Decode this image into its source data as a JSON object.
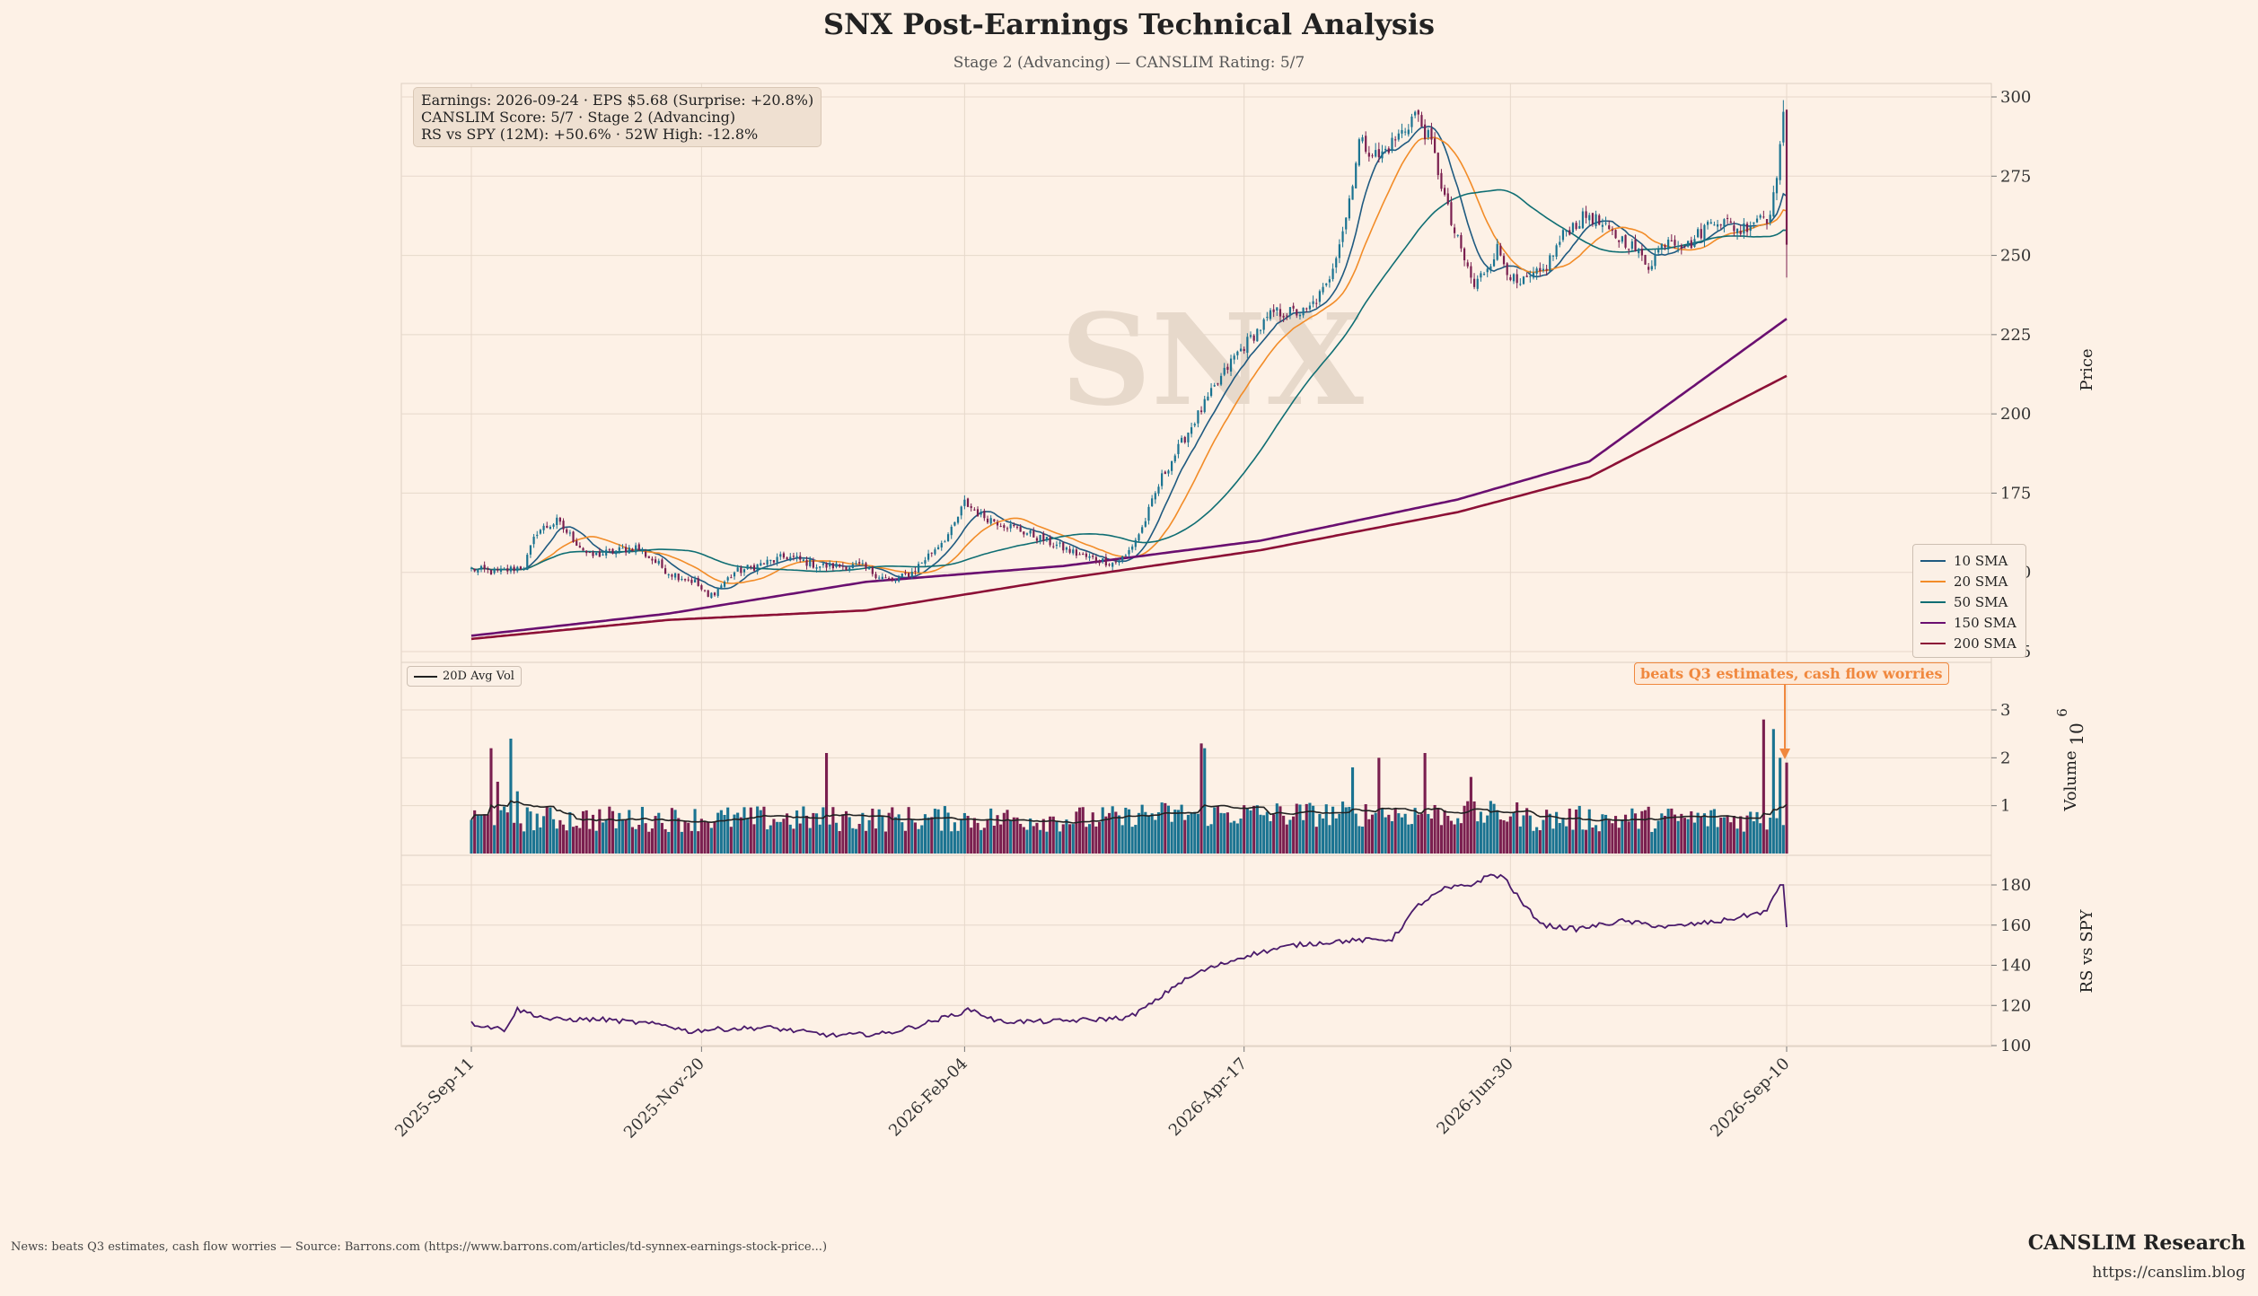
{
  "title": "SNX Post-Earnings Technical Analysis",
  "subtitle": "Stage 2 (Advancing) — CANSLIM Rating: 5/7",
  "watermark": "SNX",
  "info_box": [
    "Earnings: 2026-09-24 · EPS $5.68 (Surprise: +20.8%)",
    "CANSLIM Score: 5/7 · Stage 2 (Advancing)",
    "RS vs SPY (12M): +50.6% · 52W High: -12.8%"
  ],
  "annotation": "beats Q3 estimates, cash flow worries",
  "footer": {
    "news": "News: beats Q3 estimates, cash flow worries — Source: Barrons.com (https://www.barrons.com/articles/td-synnex-earnings-stock-price...)",
    "brand": "CANSLIM Research",
    "url": "https://canslim.blog"
  },
  "colors": {
    "up": "#1a7391",
    "down": "#7a1f4f",
    "sma10": "#1f5a80",
    "sma20": "#f28c28",
    "sma50": "#0f6e73",
    "sma150": "#6a0f70",
    "sma200": "#8c1036",
    "rs": "#4a1a6b",
    "annotation": "#f0883e"
  },
  "chart_data": {
    "type": "candlestick",
    "x_ticks": [
      "2025-Sep-11",
      "2025-Nov-20",
      "2026-Feb-04",
      "2026-Apr-17",
      "2026-Jun-30",
      "2026-Sep-10"
    ],
    "price_panel": {
      "ylabel": "Price",
      "ylim": [
        122,
        307
      ],
      "yticks": [
        125,
        150,
        175,
        200,
        225,
        250,
        275,
        300
      ],
      "legend_position": "right",
      "anchors": [
        [
          0,
          151
        ],
        [
          8,
          150
        ],
        [
          16,
          152
        ],
        [
          20,
          163
        ],
        [
          26,
          166
        ],
        [
          36,
          155
        ],
        [
          50,
          158
        ],
        [
          60,
          150
        ],
        [
          68,
          147
        ],
        [
          72,
          142
        ],
        [
          80,
          150
        ],
        [
          96,
          155
        ],
        [
          106,
          152
        ],
        [
          118,
          152
        ],
        [
          128,
          147
        ],
        [
          134,
          150
        ],
        [
          146,
          163
        ],
        [
          150,
          172
        ],
        [
          155,
          168
        ],
        [
          170,
          162
        ],
        [
          186,
          155
        ],
        [
          195,
          153
        ],
        [
          199,
          155
        ],
        [
          204,
          164
        ],
        [
          210,
          180
        ],
        [
          220,
          198
        ],
        [
          232,
          218
        ],
        [
          244,
          232
        ],
        [
          254,
          232
        ],
        [
          260,
          240
        ],
        [
          266,
          262
        ],
        [
          270,
          286
        ],
        [
          276,
          281
        ],
        [
          284,
          290
        ],
        [
          287,
          295
        ],
        [
          292,
          285
        ],
        [
          298,
          260
        ],
        [
          305,
          240
        ],
        [
          312,
          252
        ],
        [
          318,
          240
        ],
        [
          326,
          245
        ],
        [
          333,
          258
        ],
        [
          340,
          263
        ],
        [
          346,
          257
        ],
        [
          352,
          254
        ],
        [
          358,
          247
        ],
        [
          364,
          256
        ],
        [
          370,
          253
        ],
        [
          378,
          262
        ],
        [
          386,
          258
        ],
        [
          392,
          263
        ],
        [
          394,
          262
        ],
        [
          396,
          268
        ],
        [
          398,
          285
        ],
        [
          399,
          293
        ],
        [
          400,
          252
        ]
      ],
      "series": [
        {
          "name": "10 SMA",
          "period": 10
        },
        {
          "name": "20 SMA",
          "period": 20
        },
        {
          "name": "50 SMA",
          "period": 50
        },
        {
          "name": "150 SMA",
          "period": 150,
          "anchors": [
            [
              0,
              130
            ],
            [
              60,
              137
            ],
            [
              120,
              147
            ],
            [
              180,
              152
            ],
            [
              240,
              160
            ],
            [
              300,
              173
            ],
            [
              340,
              185
            ],
            [
              400,
              230
            ]
          ]
        },
        {
          "name": "200 SMA",
          "period": 200,
          "anchors": [
            [
              0,
              129
            ],
            [
              60,
              135
            ],
            [
              120,
              138
            ],
            [
              180,
              148
            ],
            [
              240,
              157
            ],
            [
              300,
              169
            ],
            [
              340,
              180
            ],
            [
              400,
              212
            ]
          ]
        }
      ]
    },
    "volume_panel": {
      "ylabel": "Volume",
      "scale_label": "10",
      "scale_exponent": "6",
      "ylim": [
        0,
        3.5
      ],
      "yticks": [
        1,
        2,
        3
      ],
      "avg_series_name": "20D Avg Vol",
      "spikes": [
        [
          6,
          2.2
        ],
        [
          8,
          1.5
        ],
        [
          12,
          2.4
        ],
        [
          14,
          1.3
        ],
        [
          108,
          2.1
        ],
        [
          222,
          2.3
        ],
        [
          223,
          2.2
        ],
        [
          268,
          1.8
        ],
        [
          276,
          2.0
        ],
        [
          290,
          2.1
        ],
        [
          304,
          1.6
        ],
        [
          393,
          2.8
        ],
        [
          396,
          2.6
        ],
        [
          398,
          2.0
        ],
        [
          400,
          1.9
        ]
      ]
    },
    "rs_panel": {
      "ylabel": "RS vs SPY",
      "ylim": [
        98,
        190
      ],
      "yticks": [
        100,
        120,
        140,
        160,
        180
      ],
      "anchors": [
        [
          0,
          111
        ],
        [
          10,
          108
        ],
        [
          14,
          118
        ],
        [
          18,
          116
        ],
        [
          24,
          113
        ],
        [
          40,
          113
        ],
        [
          60,
          110
        ],
        [
          66,
          107
        ],
        [
          72,
          108
        ],
        [
          90,
          109
        ],
        [
          110,
          105
        ],
        [
          126,
          106
        ],
        [
          136,
          110
        ],
        [
          146,
          115
        ],
        [
          152,
          118
        ],
        [
          160,
          112
        ],
        [
          176,
          112
        ],
        [
          190,
          113
        ],
        [
          200,
          114
        ],
        [
          208,
          122
        ],
        [
          214,
          130
        ],
        [
          222,
          137
        ],
        [
          236,
          145
        ],
        [
          250,
          150
        ],
        [
          264,
          152
        ],
        [
          280,
          153
        ],
        [
          288,
          170
        ],
        [
          296,
          178
        ],
        [
          304,
          180
        ],
        [
          310,
          185
        ],
        [
          314,
          184
        ],
        [
          320,
          170
        ],
        [
          326,
          160
        ],
        [
          336,
          158
        ],
        [
          350,
          162
        ],
        [
          364,
          159
        ],
        [
          380,
          162
        ],
        [
          394,
          167
        ],
        [
          398,
          180
        ],
        [
          400,
          160
        ]
      ]
    }
  }
}
